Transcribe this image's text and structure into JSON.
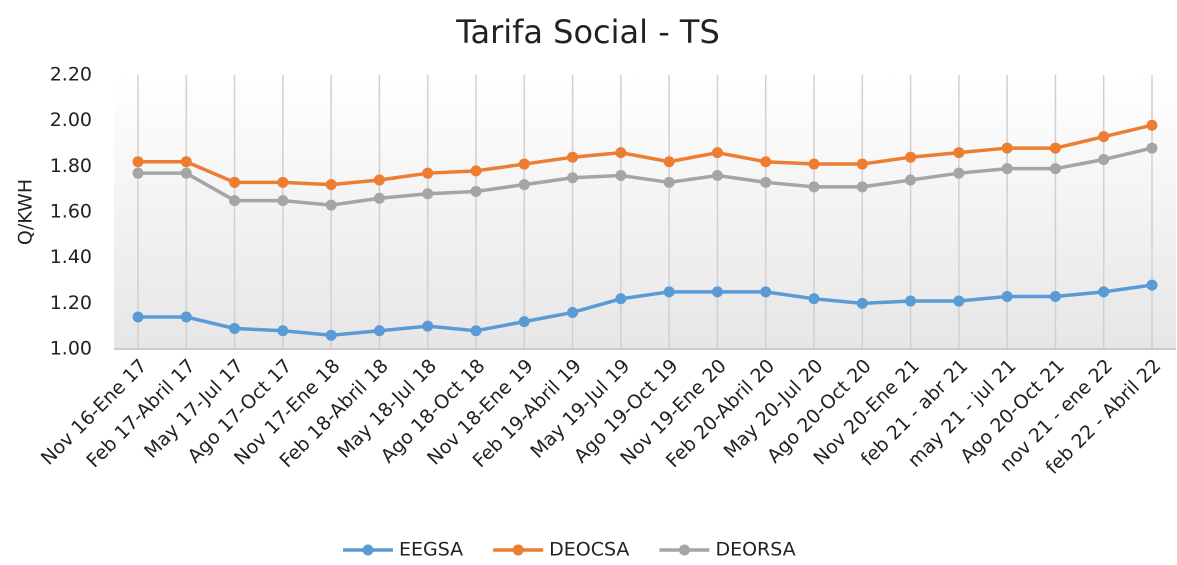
{
  "chart_data": {
    "type": "line",
    "title": "Tarifa Social - TS",
    "y_label": "Q/KWH",
    "categories": [
      "Nov 16-Ene 17",
      "Feb 17-Abril 17",
      "May 17-Jul 17",
      "Ago 17-Oct 17",
      "Nov 17-Ene 18",
      "Feb 18-Abril 18",
      "May 18-Jul 18",
      "Ago 18-Oct 18",
      "Nov 18-Ene 19",
      "Feb 19-Abril 19",
      "May 19-Jul 19",
      "Ago 19-Oct 19",
      "Nov 19-Ene 20",
      "Feb 20-Abril 20",
      "May 20-Jul 20",
      "Ago 20-Oct 20",
      "Nov 20-Ene 21",
      "feb 21 - abr 21",
      "may 21 - jul 21",
      "Ago 20-Oct 21",
      "nov 21 - ene 22",
      "feb 22 - Abril 22"
    ],
    "series": [
      {
        "name": "EEGSA",
        "color": "#5b9bd5",
        "values": [
          1.14,
          1.14,
          1.09,
          1.08,
          1.06,
          1.08,
          1.1,
          1.08,
          1.12,
          1.16,
          1.22,
          1.25,
          1.25,
          1.25,
          1.22,
          1.2,
          1.21,
          1.21,
          1.23,
          1.23,
          1.25,
          1.28
        ]
      },
      {
        "name": "DEOCSA",
        "color": "#ed7d31",
        "values": [
          1.82,
          1.82,
          1.73,
          1.73,
          1.72,
          1.74,
          1.77,
          1.78,
          1.81,
          1.84,
          1.86,
          1.82,
          1.86,
          1.82,
          1.81,
          1.81,
          1.84,
          1.86,
          1.88,
          1.88,
          1.93,
          1.98
        ]
      },
      {
        "name": "DEORSA",
        "color": "#a5a5a5",
        "values": [
          1.77,
          1.77,
          1.65,
          1.65,
          1.63,
          1.66,
          1.68,
          1.69,
          1.72,
          1.75,
          1.76,
          1.73,
          1.76,
          1.73,
          1.71,
          1.71,
          1.74,
          1.77,
          1.79,
          1.79,
          1.83,
          1.88
        ]
      }
    ],
    "ylim": [
      1.0,
      2.2
    ],
    "yticks": [
      {
        "value": 1.0,
        "label": "1.00"
      },
      {
        "value": 1.2,
        "label": "1.20"
      },
      {
        "value": 1.4,
        "label": "1.40"
      },
      {
        "value": 1.6,
        "label": "1.60"
      },
      {
        "value": 1.8,
        "label": "1.80"
      },
      {
        "value": 2.0,
        "label": "2.00"
      },
      {
        "value": 2.2,
        "label": "2.20"
      }
    ],
    "legend": "bottom",
    "grid": "vertical"
  }
}
